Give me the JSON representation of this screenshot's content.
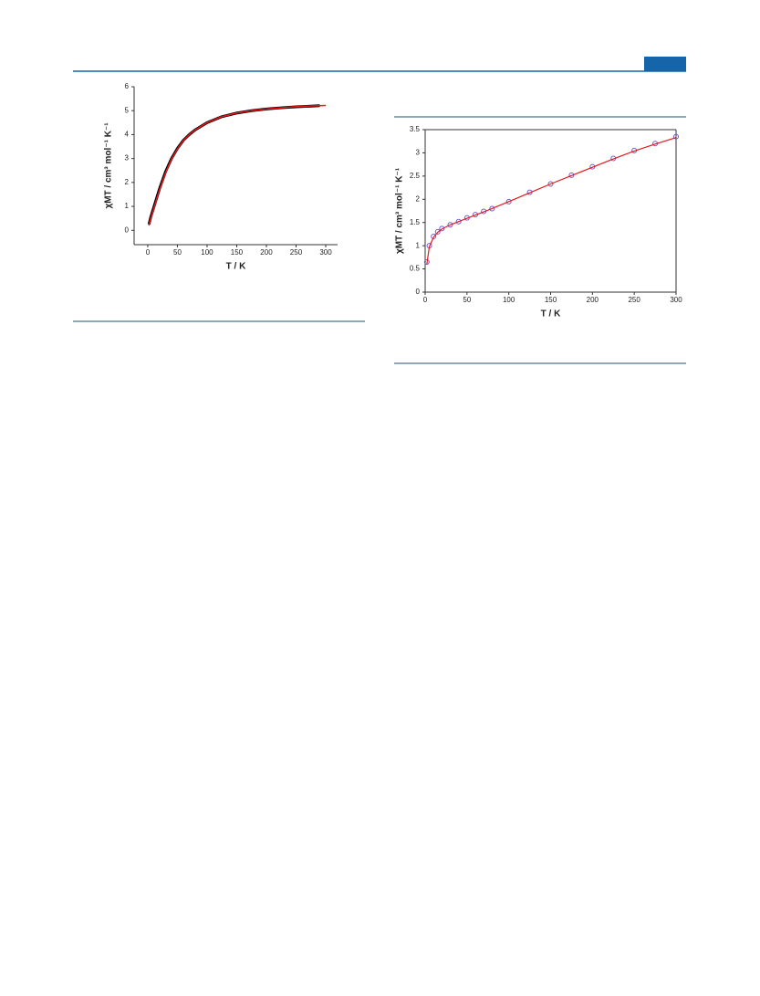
{
  "chart_data": [
    {
      "type": "line",
      "xlabel": "T / K",
      "ylabel": "χMT / cm³ mol⁻¹ K⁻¹",
      "xlim": [
        -23,
        320
      ],
      "ylim": [
        -0.6,
        6
      ],
      "xticks": [
        0,
        50,
        100,
        150,
        200,
        250,
        300
      ],
      "yticks": [
        0,
        1,
        2,
        3,
        4,
        5,
        6
      ],
      "series": [
        {
          "color": "#000000",
          "marker": "none",
          "width": 3,
          "x": [
            2,
            5,
            10,
            20,
            30,
            40,
            50,
            60,
            70,
            80,
            100,
            125,
            150,
            175,
            200,
            225,
            250,
            275,
            290
          ],
          "values": [
            0.25,
            0.55,
            0.95,
            1.75,
            2.45,
            3.0,
            3.42,
            3.76,
            4.0,
            4.2,
            4.5,
            4.75,
            4.9,
            5.0,
            5.07,
            5.12,
            5.16,
            5.19,
            5.21
          ]
        },
        {
          "color": "#e8191d",
          "marker": "none",
          "width": 1.5,
          "x": [
            2,
            5,
            10,
            20,
            30,
            40,
            50,
            60,
            70,
            80,
            100,
            125,
            150,
            175,
            200,
            225,
            250,
            275,
            300
          ],
          "values": [
            0.2,
            0.5,
            0.9,
            1.7,
            2.4,
            2.98,
            3.4,
            3.75,
            4.0,
            4.2,
            4.5,
            4.75,
            4.9,
            5.0,
            5.07,
            5.12,
            5.17,
            5.2,
            5.22
          ]
        }
      ]
    },
    {
      "type": "line",
      "xlabel": "T / K",
      "ylabel": "χMT / cm³ mol⁻¹ K⁻¹",
      "xlim": [
        0,
        300
      ],
      "ylim": [
        0,
        3.5
      ],
      "xticks": [
        0,
        50,
        100,
        150,
        200,
        250,
        300
      ],
      "yticks": [
        0,
        0.5,
        1,
        1.5,
        2,
        2.5,
        3,
        3.5
      ],
      "series": [
        {
          "color": "#6a5acd",
          "marker": "circle",
          "width": 1,
          "x": [
            2,
            5,
            10,
            15,
            20,
            30,
            40,
            50,
            60,
            70,
            80,
            100,
            125,
            150,
            175,
            200,
            225,
            250,
            275,
            300
          ],
          "values": [
            0.65,
            1.0,
            1.2,
            1.3,
            1.37,
            1.45,
            1.52,
            1.6,
            1.67,
            1.74,
            1.8,
            1.95,
            2.15,
            2.33,
            2.52,
            2.7,
            2.88,
            3.05,
            3.2,
            3.35
          ]
        },
        {
          "color": "#e8191d",
          "marker": "none",
          "width": 1.2,
          "x": [
            2,
            5,
            10,
            15,
            20,
            30,
            40,
            50,
            60,
            70,
            80,
            100,
            125,
            150,
            175,
            200,
            225,
            250,
            275,
            300
          ],
          "values": [
            0.6,
            0.98,
            1.18,
            1.29,
            1.36,
            1.45,
            1.52,
            1.59,
            1.66,
            1.73,
            1.8,
            1.95,
            2.14,
            2.33,
            2.51,
            2.69,
            2.87,
            3.04,
            3.19,
            3.33
          ]
        }
      ]
    }
  ]
}
